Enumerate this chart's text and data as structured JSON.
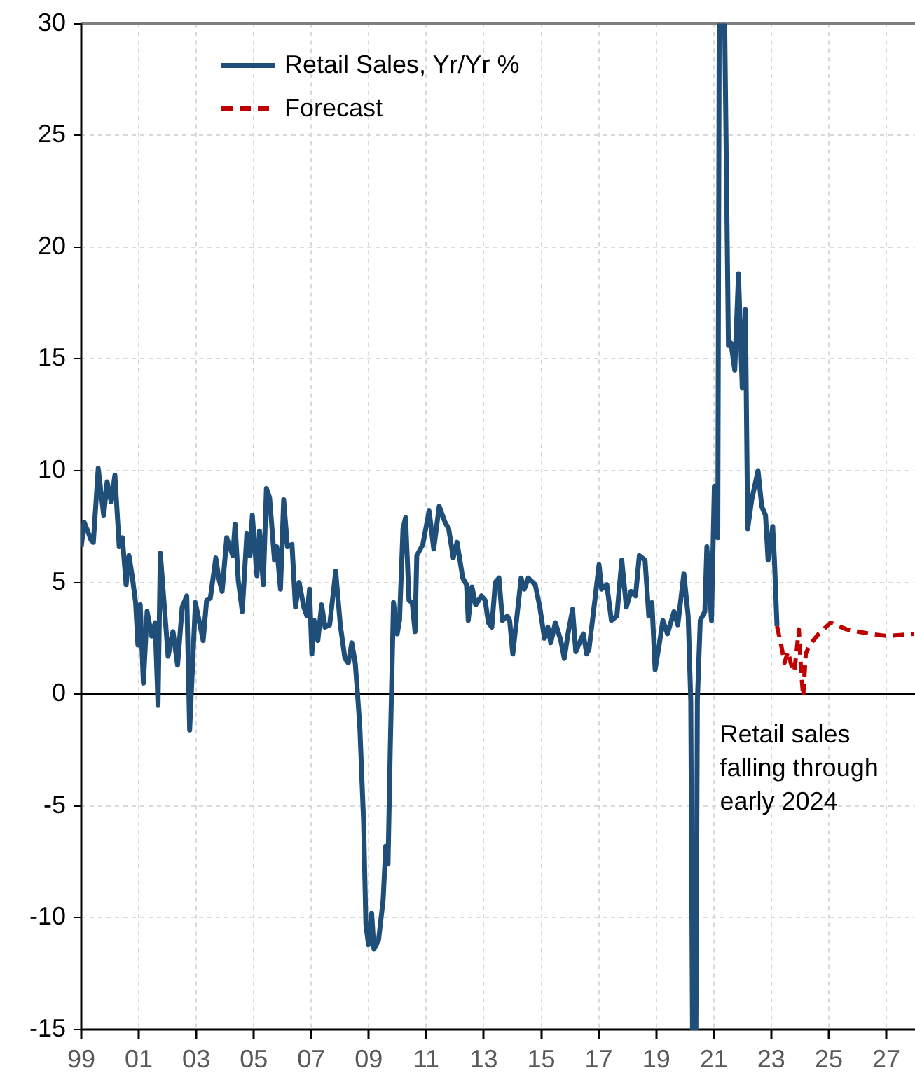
{
  "chart_data": {
    "type": "line",
    "series": [
      {
        "name": "Retail Sales, Yr/Yr %",
        "color": "#1f4e79",
        "line_style": "solid",
        "x": [
          1999.0,
          1999.1,
          1999.34,
          1999.42,
          1999.59,
          1999.78,
          1999.9,
          2000.04,
          2000.17,
          2000.32,
          2000.43,
          2000.56,
          2000.66,
          2000.77,
          2000.89,
          2000.97,
          2001.05,
          2001.16,
          2001.29,
          2001.45,
          2001.57,
          2001.67,
          2001.75,
          2002.02,
          2002.19,
          2002.35,
          2002.51,
          2002.67,
          2002.77,
          2002.97,
          2003.24,
          2003.36,
          2003.49,
          2003.68,
          2003.78,
          2003.9,
          2004.06,
          2004.27,
          2004.35,
          2004.46,
          2004.6,
          2004.76,
          2004.87,
          2004.95,
          2005.11,
          2005.2,
          2005.33,
          2005.44,
          2005.55,
          2005.72,
          2005.8,
          2005.93,
          2006.04,
          2006.17,
          2006.33,
          2006.45,
          2006.58,
          2006.74,
          2006.85,
          2006.94,
          2007.02,
          2007.1,
          2007.23,
          2007.36,
          2007.48,
          2007.64,
          2007.85,
          2008.01,
          2008.17,
          2008.29,
          2008.41,
          2008.53,
          2008.61,
          2008.69,
          2008.82,
          2008.9,
          2008.99,
          2009.1,
          2009.18,
          2009.34,
          2009.5,
          2009.59,
          2009.67,
          2009.75,
          2009.86,
          2009.99,
          2010.07,
          2010.19,
          2010.28,
          2010.4,
          2010.51,
          2010.61,
          2010.67,
          2010.88,
          2011.1,
          2011.26,
          2011.45,
          2011.65,
          2011.78,
          2011.94,
          2012.07,
          2012.27,
          2012.4,
          2012.46,
          2012.59,
          2012.72,
          2012.92,
          2013.05,
          2013.16,
          2013.28,
          2013.4,
          2013.53,
          2013.65,
          2013.82,
          2013.9,
          2014.01,
          2014.3,
          2014.41,
          2014.55,
          2014.79,
          2014.95,
          2015.11,
          2015.23,
          2015.33,
          2015.49,
          2015.68,
          2015.8,
          2015.93,
          2016.09,
          2016.2,
          2016.46,
          2016.58,
          2016.66,
          2016.79,
          2017.01,
          2017.1,
          2017.28,
          2017.44,
          2017.63,
          2017.8,
          2017.96,
          2018.12,
          2018.28,
          2018.41,
          2018.61,
          2018.74,
          2018.85,
          2018.96,
          2019.1,
          2019.23,
          2019.39,
          2019.62,
          2019.75,
          2019.96,
          2020.11,
          2020.2,
          2020.26,
          2020.38,
          2020.43,
          2020.53,
          2020.69,
          2020.76,
          2020.92,
          2021.02,
          2021.14,
          2021.19,
          2021.38,
          2021.51,
          2021.6,
          2021.73,
          2021.86,
          2021.99,
          2022.1,
          2022.18,
          2022.32,
          2022.54,
          2022.67,
          2022.8,
          2022.89,
          2023.05,
          2023.11,
          2023.2
        ],
        "values": [
          6.6,
          7.7,
          6.9,
          6.8,
          10.1,
          8.0,
          9.5,
          8.6,
          9.8,
          6.6,
          7.0,
          4.9,
          6.2,
          5.3,
          4.1,
          2.2,
          4.0,
          0.5,
          3.7,
          2.6,
          3.2,
          -0.5,
          6.3,
          1.7,
          2.8,
          1.3,
          3.9,
          4.4,
          -1.6,
          4.1,
          2.4,
          4.2,
          4.3,
          6.1,
          5.2,
          4.6,
          7.0,
          6.2,
          7.6,
          5.1,
          3.7,
          7.2,
          6.2,
          8.0,
          5.3,
          7.3,
          4.9,
          9.2,
          8.8,
          6.0,
          6.6,
          4.7,
          8.7,
          6.6,
          6.7,
          3.9,
          5.0,
          3.9,
          3.5,
          4.7,
          1.8,
          3.3,
          2.4,
          4.0,
          3.0,
          3.1,
          5.5,
          3.1,
          1.6,
          1.4,
          2.3,
          1.4,
          0,
          -1.5,
          -5.7,
          -10.3,
          -11.2,
          -9.8,
          -11.4,
          -11.0,
          -9.2,
          -6.8,
          -7.6,
          -2.3,
          4.1,
          2.7,
          3.3,
          7.4,
          7.9,
          4.2,
          4.1,
          2.8,
          6.2,
          6.7,
          8.2,
          6.5,
          8.4,
          7.7,
          7.4,
          6.1,
          6.8,
          5.2,
          4.9,
          3.3,
          4.8,
          4.0,
          4.4,
          4.2,
          3.2,
          3.0,
          5.0,
          5.2,
          3.3,
          3.5,
          3.3,
          1.8,
          5.2,
          4.7,
          5.2,
          4.9,
          3.9,
          2.5,
          3.0,
          2.3,
          3.2,
          2.4,
          1.6,
          2.7,
          3.8,
          1.9,
          2.7,
          1.8,
          2.0,
          3.4,
          5.8,
          4.7,
          4.9,
          3.3,
          3.5,
          6.0,
          3.9,
          4.6,
          4.4,
          6.2,
          6.0,
          3.5,
          4.1,
          1.1,
          2.2,
          3.3,
          2.7,
          3.7,
          3.1,
          5.4,
          3.5,
          -0.3,
          -15,
          -15,
          -0.3,
          3.3,
          3.7,
          6.6,
          3.3,
          9.3,
          7.0,
          30,
          30,
          15.6,
          15.7,
          14.5,
          18.8,
          13.7,
          17.2,
          7.4,
          8.7,
          10.0,
          8.4,
          8.0,
          6.0,
          7.5,
          6.0,
          3.05
        ]
      },
      {
        "name": "Forecast",
        "color": "#c00000",
        "line_style": "dashed",
        "x": [
          2023.2,
          2023.36,
          2023.46,
          2023.58,
          2023.7,
          2023.8,
          2023.88,
          2023.96,
          2024.03,
          2024.11,
          2024.2,
          2024.33,
          2024.65,
          2025.06,
          2025.62,
          2026.44,
          2027.06,
          2027.96
        ],
        "values": [
          3.05,
          2.1,
          1.4,
          1.9,
          1.3,
          1.0,
          1.9,
          2.9,
          1.2,
          -0.1,
          1.8,
          2.2,
          2.7,
          3.2,
          2.9,
          2.7,
          2.6,
          2.7
        ]
      }
    ],
    "xlim": [
      1999,
      2028
    ],
    "xticks": [
      {
        "value": 1999,
        "label": "99"
      },
      {
        "value": 2001,
        "label": "01"
      },
      {
        "value": 2003,
        "label": "03"
      },
      {
        "value": 2005,
        "label": "05"
      },
      {
        "value": 2007,
        "label": "07"
      },
      {
        "value": 2009,
        "label": "09"
      },
      {
        "value": 2011,
        "label": "11"
      },
      {
        "value": 2013,
        "label": "13"
      },
      {
        "value": 2015,
        "label": "15"
      },
      {
        "value": 2017,
        "label": "17"
      },
      {
        "value": 2019,
        "label": "19"
      },
      {
        "value": 2021,
        "label": "21"
      },
      {
        "value": 2023,
        "label": "23"
      },
      {
        "value": 2025,
        "label": "25"
      },
      {
        "value": 2027,
        "label": "27"
      }
    ],
    "ylim": [
      -15,
      30
    ],
    "yticks": [
      -15,
      -10,
      -5,
      0,
      5,
      10,
      15,
      20,
      25,
      30
    ],
    "ref_lines": [
      {
        "axis": "y",
        "value": 0,
        "color": "#000000"
      }
    ],
    "annotations": [
      "Retail sales\nfalling through\nearly 2024"
    ],
    "grid": true,
    "legend": "top left",
    "marker": "none"
  }
}
